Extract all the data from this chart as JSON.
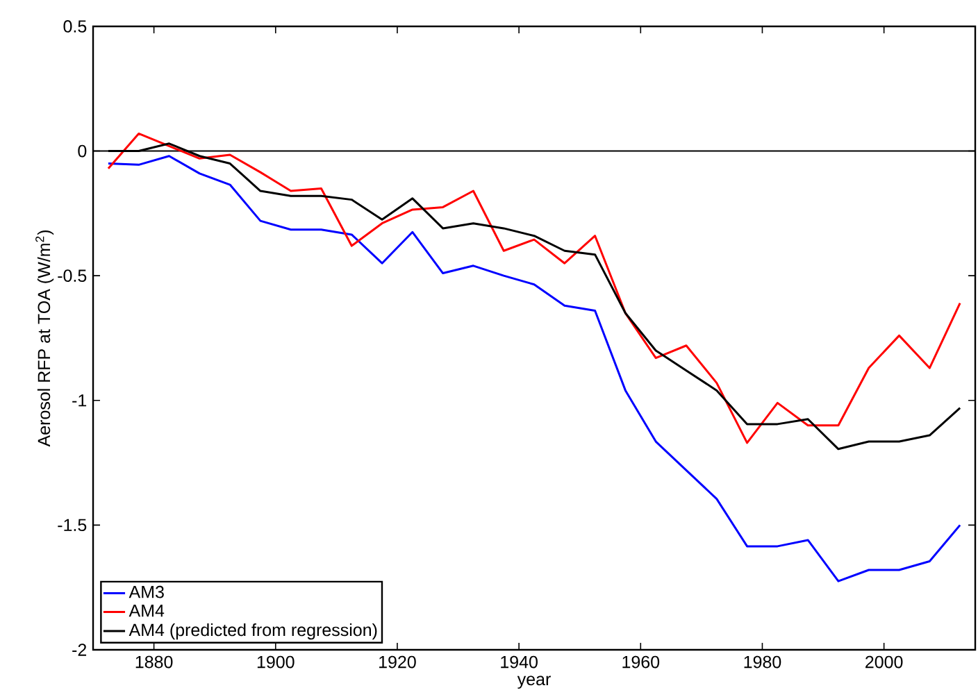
{
  "chart_data": {
    "type": "line",
    "xlabel": "year",
    "ylabel": "Aerosol RFP at TOA (W/m$^{2}$)",
    "x": [
      1872.5,
      1877.5,
      1882.5,
      1887.5,
      1892.5,
      1897.5,
      1902.5,
      1907.5,
      1912.5,
      1917.5,
      1922.5,
      1927.5,
      1932.5,
      1937.5,
      1942.5,
      1947.5,
      1952.5,
      1957.5,
      1962.5,
      1967.5,
      1972.5,
      1977.5,
      1982.5,
      1987.5,
      1992.5,
      1997.5,
      2002.5,
      2007.5,
      2012.5
    ],
    "series": [
      {
        "name": "AM3",
        "color": "#0000ff",
        "values": [
          -0.05,
          -0.055,
          -0.02,
          -0.09,
          -0.135,
          -0.28,
          -0.315,
          -0.315,
          -0.335,
          -0.45,
          -0.325,
          -0.49,
          -0.46,
          -0.5,
          -0.535,
          -0.62,
          -0.64,
          -0.96,
          -1.165,
          -1.28,
          -1.395,
          -1.585,
          -1.585,
          -1.56,
          -1.725,
          -1.68,
          -1.68,
          -1.645,
          -1.5
        ]
      },
      {
        "name": "AM4",
        "color": "#ff0000",
        "values": [
          -0.07,
          0.07,
          0.02,
          -0.03,
          -0.015,
          -0.085,
          -0.16,
          -0.15,
          -0.38,
          -0.29,
          -0.235,
          -0.225,
          -0.16,
          -0.4,
          -0.355,
          -0.45,
          -0.34,
          -0.65,
          -0.83,
          -0.78,
          -0.93,
          -1.17,
          -1.01,
          -1.1,
          -1.1,
          -0.87,
          -0.74,
          -0.87,
          -0.61
        ]
      },
      {
        "name": "AM4 (predicted from regression)",
        "color": "#000000",
        "values": [
          0.0,
          0.0,
          0.03,
          -0.02,
          -0.05,
          -0.16,
          -0.18,
          -0.18,
          -0.195,
          -0.275,
          -0.19,
          -0.31,
          -0.29,
          -0.31,
          -0.34,
          -0.4,
          -0.415,
          -0.65,
          -0.8,
          -0.88,
          -0.96,
          -1.095,
          -1.095,
          -1.075,
          -1.195,
          -1.165,
          -1.165,
          -1.14,
          -1.03
        ]
      }
    ],
    "xlim": [
      1870,
      2015
    ],
    "ylim": [
      -2,
      0.5
    ],
    "xticks": [
      1880,
      1900,
      1920,
      1940,
      1960,
      1980,
      2000
    ],
    "yticks": [
      -2,
      -1.5,
      -1,
      -0.5,
      0,
      0.5
    ],
    "ref_lines": [
      {
        "axis": "y",
        "value": 0,
        "color": "#000000"
      }
    ],
    "legend": "bottom left",
    "marker": "none",
    "line_style": "solid",
    "grid": false
  }
}
